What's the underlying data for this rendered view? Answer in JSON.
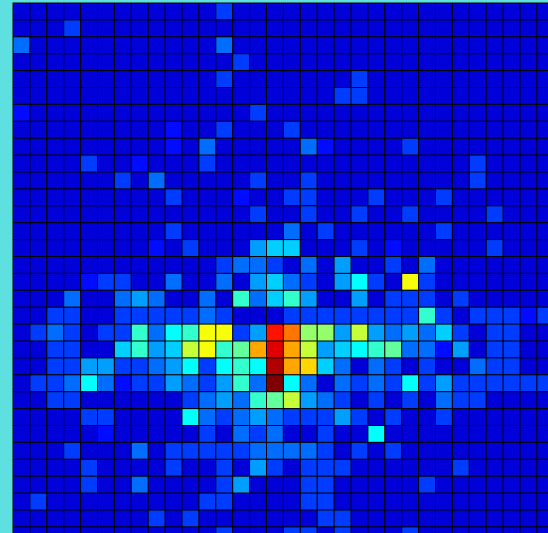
{
  "colors": {
    "frame": "#5ee0e0",
    "grid": "#000000",
    "colormap": "jet"
  },
  "chart_data": {
    "type": "heatmap",
    "title": "",
    "xlabel": "",
    "ylabel": "",
    "grid": true,
    "legend": "none",
    "value_range": [
      0,
      20
    ],
    "rows": 32,
    "cols": 33,
    "cells": [
      [
        2,
        0,
        4
      ],
      [
        2,
        12,
        4
      ],
      [
        4,
        12,
        3
      ],
      [
        4,
        20,
        3
      ],
      [
        5,
        19,
        3
      ],
      [
        5,
        20,
        3
      ],
      [
        6,
        0,
        2
      ],
      [
        6,
        14,
        3
      ],
      [
        7,
        9,
        2
      ],
      [
        7,
        12,
        3
      ],
      [
        7,
        16,
        3
      ],
      [
        8,
        9,
        2
      ],
      [
        8,
        11,
        4
      ],
      [
        8,
        17,
        4
      ],
      [
        8,
        18,
        2
      ],
      [
        8,
        23,
        3
      ],
      [
        9,
        4,
        3
      ],
      [
        9,
        7,
        2
      ],
      [
        9,
        11,
        3
      ],
      [
        9,
        27,
        3
      ],
      [
        10,
        6,
        3
      ],
      [
        10,
        8,
        4
      ],
      [
        10,
        14,
        3
      ],
      [
        10,
        17,
        3
      ],
      [
        10,
        27,
        3
      ],
      [
        11,
        9,
        3
      ],
      [
        11,
        13,
        2
      ],
      [
        11,
        16,
        3
      ],
      [
        11,
        17,
        3
      ],
      [
        11,
        21,
        3
      ],
      [
        11,
        25,
        3
      ],
      [
        12,
        14,
        3
      ],
      [
        12,
        17,
        3
      ],
      [
        12,
        20,
        3
      ],
      [
        12,
        23,
        3
      ],
      [
        12,
        28,
        3
      ],
      [
        13,
        9,
        3
      ],
      [
        13,
        16,
        4
      ],
      [
        13,
        18,
        3
      ],
      [
        13,
        25,
        3
      ],
      [
        14,
        8,
        2
      ],
      [
        14,
        10,
        3
      ],
      [
        14,
        14,
        5
      ],
      [
        14,
        15,
        6
      ],
      [
        14,
        16,
        6
      ],
      [
        14,
        20,
        3
      ],
      [
        14,
        22,
        2
      ],
      [
        14,
        28,
        3
      ],
      [
        15,
        12,
        3
      ],
      [
        15,
        13,
        4
      ],
      [
        15,
        14,
        4
      ],
      [
        15,
        15,
        3
      ],
      [
        15,
        17,
        4
      ],
      [
        15,
        19,
        5
      ],
      [
        15,
        22,
        3
      ],
      [
        15,
        24,
        4
      ],
      [
        16,
        4,
        2
      ],
      [
        16,
        5,
        3
      ],
      [
        16,
        6,
        3
      ],
      [
        16,
        9,
        4
      ],
      [
        16,
        12,
        4
      ],
      [
        16,
        14,
        5
      ],
      [
        16,
        15,
        6
      ],
      [
        16,
        16,
        4
      ],
      [
        16,
        17,
        3
      ],
      [
        16,
        19,
        5
      ],
      [
        16,
        20,
        7
      ],
      [
        16,
        21,
        3
      ],
      [
        16,
        23,
        12
      ],
      [
        16,
        24,
        3
      ],
      [
        17,
        3,
        4
      ],
      [
        17,
        6,
        4
      ],
      [
        17,
        7,
        5
      ],
      [
        17,
        8,
        4
      ],
      [
        17,
        11,
        4
      ],
      [
        17,
        13,
        8
      ],
      [
        17,
        14,
        4
      ],
      [
        17,
        15,
        6
      ],
      [
        17,
        16,
        8
      ],
      [
        17,
        17,
        5
      ],
      [
        17,
        20,
        5
      ],
      [
        17,
        22,
        3
      ],
      [
        17,
        23,
        3
      ],
      [
        17,
        24,
        3
      ],
      [
        17,
        26,
        3
      ],
      [
        18,
        2,
        3
      ],
      [
        18,
        3,
        3
      ],
      [
        18,
        6,
        3
      ],
      [
        18,
        7,
        3
      ],
      [
        18,
        8,
        3
      ],
      [
        18,
        9,
        3
      ],
      [
        18,
        10,
        3
      ],
      [
        18,
        11,
        4
      ],
      [
        18,
        12,
        3
      ],
      [
        18,
        16,
        3
      ],
      [
        18,
        17,
        3
      ],
      [
        18,
        18,
        3
      ],
      [
        18,
        19,
        3
      ],
      [
        18,
        20,
        3
      ],
      [
        18,
        21,
        3
      ],
      [
        18,
        22,
        3
      ],
      [
        18,
        23,
        3
      ],
      [
        18,
        24,
        8
      ],
      [
        18,
        25,
        3
      ],
      [
        18,
        27,
        3
      ],
      [
        18,
        28,
        3
      ],
      [
        18,
        29,
        3
      ],
      [
        18,
        30,
        2
      ],
      [
        18,
        31,
        3
      ],
      [
        19,
        1,
        3
      ],
      [
        19,
        2,
        4
      ],
      [
        19,
        3,
        3
      ],
      [
        19,
        5,
        3
      ],
      [
        19,
        6,
        3
      ],
      [
        19,
        7,
        8
      ],
      [
        19,
        8,
        4
      ],
      [
        19,
        9,
        7
      ],
      [
        19,
        10,
        8
      ],
      [
        19,
        11,
        12
      ],
      [
        19,
        12,
        12
      ],
      [
        19,
        13,
        3
      ],
      [
        19,
        14,
        5
      ],
      [
        19,
        15,
        17
      ],
      [
        19,
        16,
        15
      ],
      [
        19,
        17,
        10
      ],
      [
        19,
        18,
        10
      ],
      [
        19,
        19,
        5
      ],
      [
        19,
        20,
        11
      ],
      [
        19,
        21,
        5
      ],
      [
        19,
        22,
        4
      ],
      [
        19,
        23,
        5
      ],
      [
        19,
        24,
        4
      ],
      [
        19,
        25,
        6
      ],
      [
        19,
        26,
        3
      ],
      [
        19,
        28,
        3
      ],
      [
        19,
        29,
        3
      ],
      [
        20,
        2,
        3
      ],
      [
        20,
        3,
        3
      ],
      [
        20,
        6,
        6
      ],
      [
        20,
        7,
        8
      ],
      [
        20,
        8,
        5
      ],
      [
        20,
        9,
        6
      ],
      [
        20,
        10,
        11
      ],
      [
        20,
        11,
        12
      ],
      [
        20,
        12,
        8
      ],
      [
        20,
        13,
        9
      ],
      [
        20,
        14,
        14
      ],
      [
        20,
        15,
        18
      ],
      [
        20,
        16,
        14
      ],
      [
        20,
        17,
        11
      ],
      [
        20,
        18,
        5
      ],
      [
        20,
        19,
        6
      ],
      [
        20,
        20,
        7
      ],
      [
        20,
        21,
        8
      ],
      [
        20,
        22,
        9
      ],
      [
        20,
        23,
        4
      ],
      [
        20,
        24,
        4
      ],
      [
        20,
        25,
        2
      ],
      [
        20,
        26,
        5
      ],
      [
        20,
        28,
        3
      ],
      [
        20,
        29,
        3
      ],
      [
        21,
        2,
        3
      ],
      [
        21,
        3,
        3
      ],
      [
        21,
        4,
        5
      ],
      [
        21,
        5,
        5
      ],
      [
        21,
        6,
        3
      ],
      [
        21,
        7,
        3
      ],
      [
        21,
        8,
        4
      ],
      [
        21,
        9,
        5
      ],
      [
        21,
        10,
        7
      ],
      [
        21,
        11,
        3
      ],
      [
        21,
        12,
        7
      ],
      [
        21,
        13,
        8
      ],
      [
        21,
        14,
        7
      ],
      [
        21,
        15,
        19
      ],
      [
        21,
        16,
        14
      ],
      [
        21,
        17,
        13
      ],
      [
        21,
        18,
        6
      ],
      [
        21,
        19,
        4
      ],
      [
        21,
        21,
        4
      ],
      [
        21,
        22,
        3
      ],
      [
        21,
        24,
        3
      ],
      [
        21,
        27,
        4
      ],
      [
        21,
        28,
        3
      ],
      [
        21,
        29,
        3
      ],
      [
        22,
        1,
        3
      ],
      [
        22,
        2,
        3
      ],
      [
        22,
        3,
        4
      ],
      [
        22,
        4,
        7
      ],
      [
        22,
        5,
        4
      ],
      [
        22,
        6,
        2
      ],
      [
        22,
        7,
        3
      ],
      [
        22,
        8,
        3
      ],
      [
        22,
        9,
        5
      ],
      [
        22,
        10,
        4
      ],
      [
        22,
        11,
        3
      ],
      [
        22,
        12,
        5
      ],
      [
        22,
        13,
        8
      ],
      [
        22,
        14,
        4
      ],
      [
        22,
        15,
        20
      ],
      [
        22,
        16,
        7
      ],
      [
        22,
        17,
        4
      ],
      [
        22,
        19,
        4
      ],
      [
        22,
        20,
        3
      ],
      [
        22,
        21,
        4
      ],
      [
        22,
        22,
        3
      ],
      [
        22,
        23,
        7
      ],
      [
        22,
        24,
        3
      ],
      [
        22,
        25,
        5
      ],
      [
        22,
        26,
        3
      ],
      [
        22,
        27,
        3
      ],
      [
        22,
        28,
        3
      ],
      [
        22,
        29,
        3
      ],
      [
        22,
        30,
        3
      ],
      [
        22,
        31,
        3
      ],
      [
        23,
        2,
        3
      ],
      [
        23,
        3,
        3
      ],
      [
        23,
        10,
        3
      ],
      [
        23,
        11,
        4
      ],
      [
        23,
        12,
        5
      ],
      [
        23,
        13,
        4
      ],
      [
        23,
        14,
        8
      ],
      [
        23,
        15,
        9
      ],
      [
        23,
        16,
        11
      ],
      [
        23,
        17,
        5
      ],
      [
        23,
        18,
        4
      ],
      [
        23,
        19,
        3
      ],
      [
        23,
        21,
        3
      ],
      [
        23,
        23,
        3
      ],
      [
        23,
        25,
        4
      ],
      [
        23,
        26,
        3
      ],
      [
        23,
        27,
        3
      ],
      [
        24,
        4,
        3
      ],
      [
        24,
        5,
        3
      ],
      [
        24,
        10,
        7
      ],
      [
        24,
        11,
        4
      ],
      [
        24,
        12,
        3
      ],
      [
        24,
        13,
        4
      ],
      [
        24,
        14,
        5
      ],
      [
        24,
        15,
        4
      ],
      [
        24,
        16,
        3
      ],
      [
        24,
        17,
        3
      ],
      [
        24,
        18,
        3
      ],
      [
        24,
        19,
        5
      ],
      [
        24,
        20,
        3
      ],
      [
        24,
        22,
        3
      ],
      [
        24,
        25,
        3
      ],
      [
        25,
        5,
        2
      ],
      [
        25,
        11,
        3
      ],
      [
        25,
        13,
        4
      ],
      [
        25,
        14,
        3
      ],
      [
        25,
        15,
        4
      ],
      [
        25,
        18,
        3
      ],
      [
        25,
        21,
        7
      ],
      [
        26,
        3,
        3
      ],
      [
        26,
        7,
        4
      ],
      [
        26,
        9,
        3
      ],
      [
        26,
        10,
        3
      ],
      [
        26,
        11,
        3
      ],
      [
        26,
        12,
        3
      ],
      [
        26,
        13,
        3
      ],
      [
        26,
        14,
        4
      ],
      [
        26,
        15,
        4
      ],
      [
        26,
        16,
        4
      ],
      [
        26,
        17,
        4
      ],
      [
        26,
        18,
        3
      ],
      [
        26,
        20,
        3
      ],
      [
        26,
        22,
        3
      ],
      [
        27,
        4,
        3
      ],
      [
        27,
        9,
        3
      ],
      [
        27,
        12,
        3
      ],
      [
        27,
        14,
        5
      ],
      [
        27,
        15,
        3
      ],
      [
        27,
        17,
        3
      ],
      [
        27,
        18,
        3
      ],
      [
        27,
        19,
        3
      ],
      [
        27,
        26,
        3
      ],
      [
        28,
        4,
        3
      ],
      [
        28,
        7,
        4
      ],
      [
        28,
        12,
        3
      ],
      [
        28,
        13,
        5
      ],
      [
        28,
        17,
        3
      ],
      [
        28,
        18,
        3
      ],
      [
        28,
        24,
        3
      ],
      [
        29,
        1,
        3
      ],
      [
        29,
        11,
        3
      ],
      [
        29,
        12,
        3
      ],
      [
        29,
        17,
        3
      ],
      [
        29,
        18,
        3
      ],
      [
        30,
        8,
        3
      ],
      [
        30,
        10,
        3
      ],
      [
        30,
        18,
        3
      ],
      [
        30,
        19,
        3
      ],
      [
        31,
        12,
        3
      ],
      [
        31,
        16,
        3
      ],
      [
        31,
        17,
        3
      ],
      [
        31,
        19,
        3
      ],
      [
        31,
        23,
        3
      ],
      [
        0,
        12,
        3
      ],
      [
        1,
        3,
        3
      ],
      [
        3,
        13,
        3
      ]
    ]
  }
}
